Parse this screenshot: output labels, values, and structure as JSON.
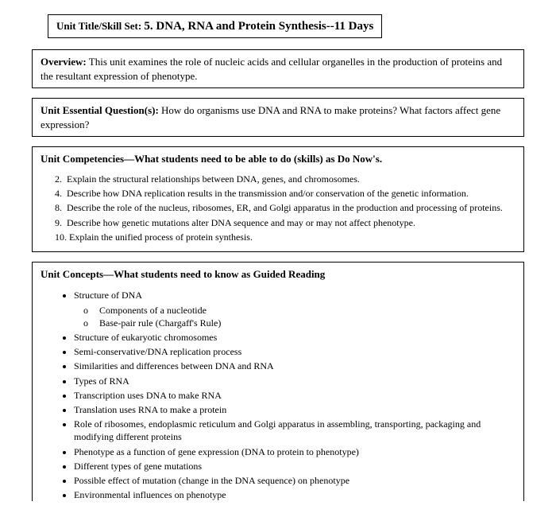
{
  "title": {
    "prefix": "Unit Title/Skill Set:",
    "main": "5.  DNA, RNA and Protein Synthesis--11 Days"
  },
  "overview": {
    "label": "Overview:",
    "text": " This unit examines the role of nucleic acids and cellular organelles in the production of proteins and the resultant expression of phenotype."
  },
  "essential": {
    "label": "Unit Essential Question(s):",
    "text": " How do organisms use DNA and RNA to make proteins?  What factors affect gene expression?"
  },
  "competencies": {
    "label": "Unit Competencies—What students need to be able to do (skills) as Do Now's.",
    "items": [
      {
        "n": "2.",
        "t": "Explain the structural relationships between DNA, genes, and chromosomes."
      },
      {
        "n": "4.",
        "t": "Describe how DNA replication results in the transmission and/or conservation of the genetic information."
      },
      {
        "n": "8.",
        "t": "Describe the role of the nucleus, ribosomes, ER, and Golgi apparatus in the production and processing of proteins."
      },
      {
        "n": "9.",
        "t": "Describe how genetic mutations alter DNA sequence and may or may not affect phenotype."
      },
      {
        "n": "10.",
        "t": "Explain the unified process of protein synthesis."
      }
    ]
  },
  "concepts": {
    "label": "Unit Concepts—What students need to know as Guided Reading",
    "items": [
      "Structure of DNA",
      "Structure of eukaryotic chromosomes",
      "Semi-conservative/DNA replication process",
      "Similarities and differences between DNA and RNA",
      "Types of RNA",
      "Transcription uses DNA to make RNA",
      "Translation uses RNA to make a protein",
      "Role of ribosomes, endoplasmic reticulum and Golgi apparatus in assembling, transporting, packaging and modifying different proteins",
      "Phenotype as a function of gene expression (DNA to protein to phenotype)",
      "Different types of gene mutations",
      "Possible effect of mutation (change in the DNA sequence) on phenotype",
      "Environmental influences on phenotype"
    ],
    "sub_items": [
      "Components of a nucleotide",
      "Base-pair rule (Chargaff's Rule)"
    ]
  }
}
